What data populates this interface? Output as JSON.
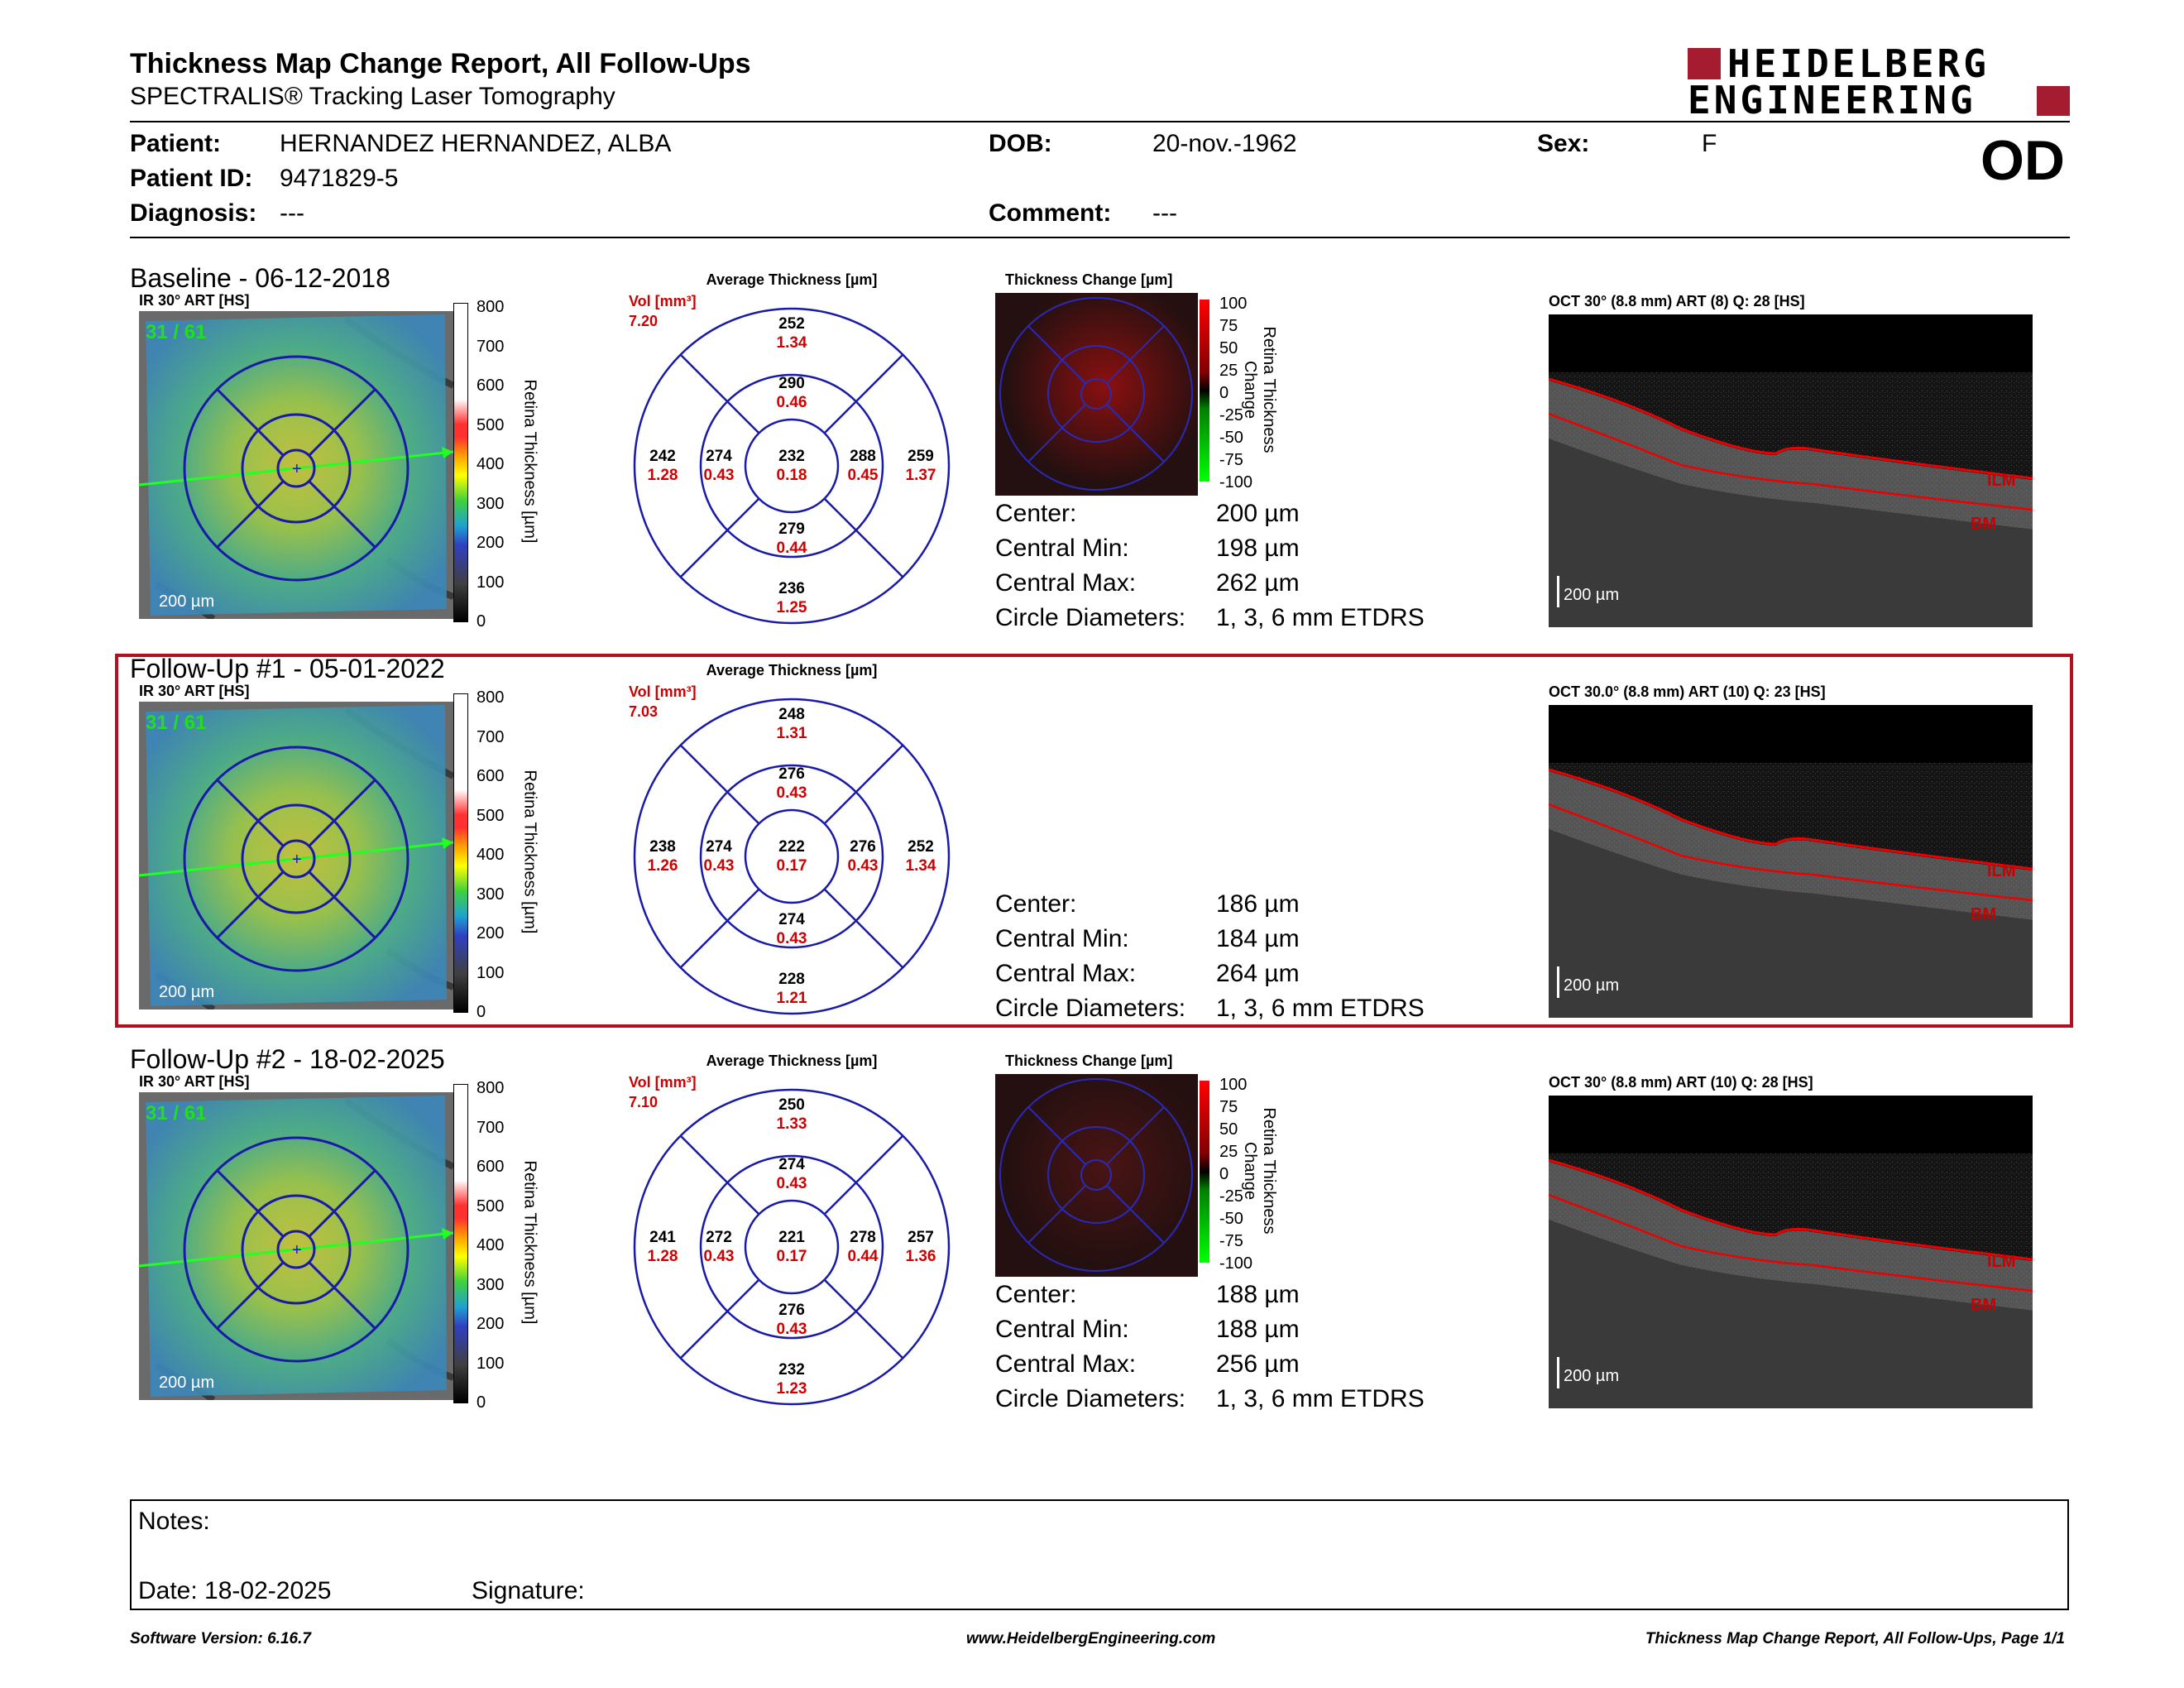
{
  "header": {
    "title": "Thickness Map Change Report, All Follow-Ups",
    "subtitle": "SPECTRALIS® Tracking Laser Tomography",
    "logo_line1": "HEIDELBERG",
    "logo_line2": "ENGINEERING",
    "eye": "OD"
  },
  "patient": {
    "name_label": "Patient:",
    "name": "HERNANDEZ HERNANDEZ, ALBA",
    "id_label": "Patient ID:",
    "id": "9471829-5",
    "diagnosis_label": "Diagnosis:",
    "diagnosis": "---",
    "dob_label": "DOB:",
    "dob": "20-nov.-1962",
    "comment_label": "Comment:",
    "comment": "---",
    "sex_label": "Sex:",
    "sex": "F"
  },
  "labels": {
    "ir_title_prefix": "IR 30° ART [HS]",
    "avg_thickness": "Average Thickness [µm]",
    "thickness_change": "Thickness Change [µm]",
    "vol": "Vol [mm³]",
    "scale_bar": "200 µm",
    "center": "Center:",
    "central_min": "Central Min:",
    "central_max": "Central Max:",
    "circle_diameters": "Circle Diameters:",
    "circle_value": "1, 3, 6 mm ETDRS",
    "retina_thickness_axis": "Retina Thickness [µm]",
    "retina_change_axis": "Retina Thickness Change",
    "ilm": "ILM",
    "bm": "BM",
    "thickness_ticks": [
      "800",
      "700",
      "600",
      "500",
      "400",
      "300",
      "200",
      "100",
      "0"
    ],
    "change_ticks": [
      "100",
      "75",
      "50",
      "25",
      "0",
      "-25",
      "-50",
      "-75",
      "-100"
    ]
  },
  "exams": [
    {
      "title": "Baseline - 06-12-2018",
      "ir_label": "IR 30° ART [HS]",
      "frame_count": "31 / 61",
      "vol": "7.20",
      "sectors": {
        "c": [
          "232",
          "0.18"
        ],
        "in": [
          "290",
          "0.46"
        ],
        "ii": [
          "279",
          "0.44"
        ],
        "it": [
          "288",
          "0.45"
        ],
        "inn": [
          "274",
          "0.43"
        ],
        "on": [
          "252",
          "1.34"
        ],
        "oi": [
          "236",
          "1.25"
        ],
        "ot": [
          "259",
          "1.37"
        ],
        "onn": [
          "242",
          "1.28"
        ]
      },
      "has_change_map": true,
      "center": "200 µm",
      "central_min": "198 µm",
      "central_max": "262 µm",
      "oct_label": "OCT 30° (8.8 mm) ART (8) Q: 28 [HS]"
    },
    {
      "title": "Follow-Up #1 - 05-01-2022",
      "ir_label": "IR 30° ART [HS]",
      "frame_count": "31 / 61",
      "vol": "7.03",
      "sectors": {
        "c": [
          "222",
          "0.17"
        ],
        "in": [
          "276",
          "0.43"
        ],
        "ii": [
          "274",
          "0.43"
        ],
        "it": [
          "276",
          "0.43"
        ],
        "inn": [
          "274",
          "0.43"
        ],
        "on": [
          "248",
          "1.31"
        ],
        "oi": [
          "228",
          "1.21"
        ],
        "ot": [
          "252",
          "1.34"
        ],
        "onn": [
          "238",
          "1.26"
        ]
      },
      "has_change_map": false,
      "center": "186 µm",
      "central_min": "184 µm",
      "central_max": "264 µm",
      "oct_label": "OCT 30.0° (8.8 mm) ART (10) Q: 23 [HS]"
    },
    {
      "title": "Follow-Up #2 - 18-02-2025",
      "ir_label": "IR 30° ART [HS]",
      "frame_count": "31 / 61",
      "vol": "7.10",
      "sectors": {
        "c": [
          "221",
          "0.17"
        ],
        "in": [
          "274",
          "0.43"
        ],
        "ii": [
          "276",
          "0.43"
        ],
        "it": [
          "278",
          "0.44"
        ],
        "inn": [
          "272",
          "0.43"
        ],
        "on": [
          "250",
          "1.33"
        ],
        "oi": [
          "232",
          "1.23"
        ],
        "ot": [
          "257",
          "1.36"
        ],
        "onn": [
          "241",
          "1.28"
        ]
      },
      "has_change_map": true,
      "center": "188 µm",
      "central_min": "188 µm",
      "central_max": "256 µm",
      "oct_label": "OCT 30° (8.8 mm) ART (10) Q: 28 [HS]"
    }
  ],
  "notes": {
    "notes_label": "Notes:",
    "date_label": "Date: 18-02-2025",
    "signature_label": "Signature:"
  },
  "footer": {
    "left": "Software Version: 6.16.7",
    "center": "www.HeidelbergEngineering.com",
    "right": "Thickness Map Change Report, All Follow-Ups, Page 1/1"
  },
  "colors": {
    "accent_red": "#a51c30",
    "etdrs_blue": "#1a1aa8",
    "value_red": "#d00000"
  }
}
